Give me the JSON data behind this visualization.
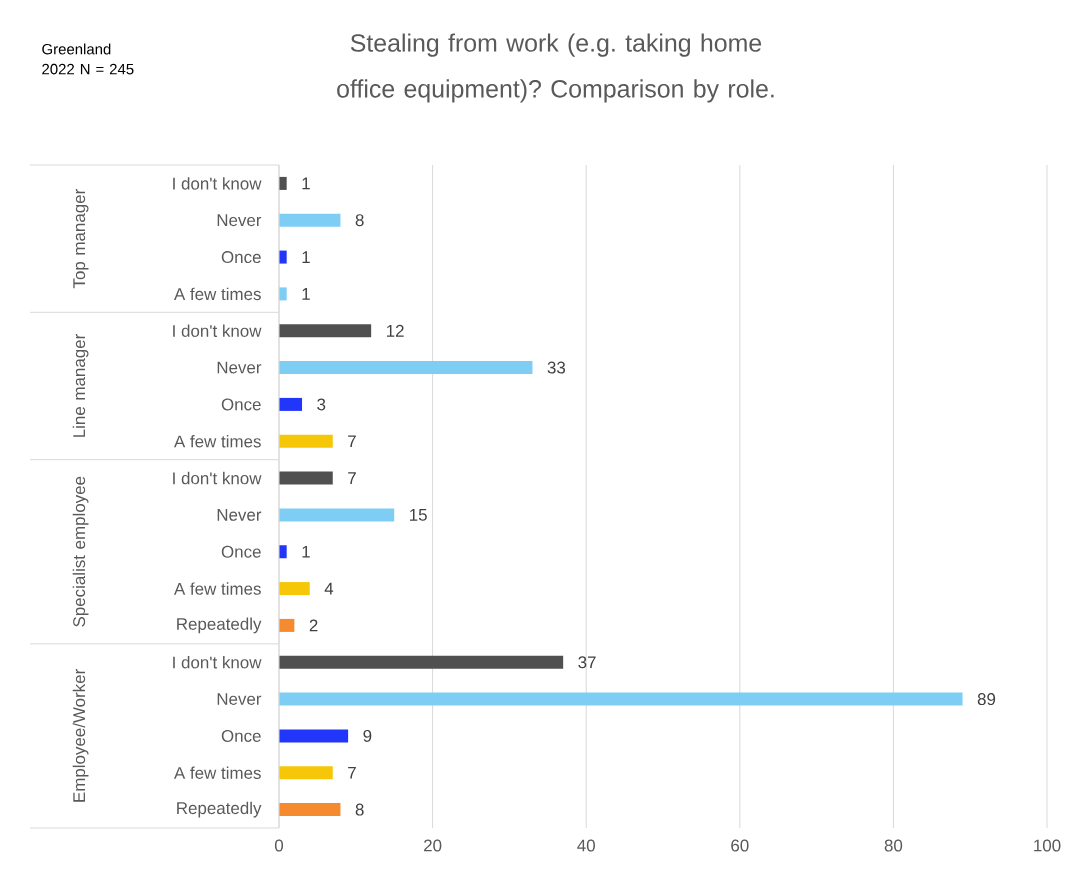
{
  "chart_data": {
    "type": "bar",
    "orientation": "horizontal",
    "title": "Stealing from work (e.g. taking home office equipment)? Comparison by role.",
    "subtitle": "Greenland 2022 N = 245",
    "categories": [
      "I don't know",
      "Never",
      "Once",
      "A few times",
      "I don't know",
      "Never",
      "Once",
      "A few times",
      "I don't know",
      "Never",
      "Once",
      "A few times",
      "Repeatedly",
      "I don't know",
      "Never",
      "Once",
      "A few times",
      "Repeatedly"
    ],
    "values": [
      1,
      8,
      1,
      1,
      12,
      33,
      3,
      7,
      7,
      15,
      1,
      4,
      2,
      37,
      89,
      9,
      7,
      8
    ],
    "colors": [
      "#505050",
      "#7ecdf5",
      "#2236fb",
      "#7ecdf5",
      "#505050",
      "#7ecdf5",
      "#2236fb",
      "#f6c708",
      "#505050",
      "#7ecdf5",
      "#2236fb",
      "#f6c708",
      "#f68a2e",
      "#505050",
      "#7ecdf5",
      "#2236fb",
      "#f6c708",
      "#f68a2e"
    ],
    "annotations": [
      "Top manager",
      "Line manager",
      "Specialist employee",
      "Employee/Worker"
    ],
    "xlim": [
      0,
      100
    ],
    "xticks": [
      0,
      20,
      40,
      60,
      80,
      100
    ],
    "grid": "x",
    "data_labels": true
  }
}
